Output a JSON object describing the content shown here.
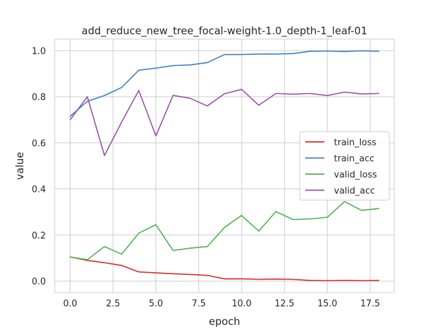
{
  "chart_data": {
    "type": "line",
    "title": "add_reduce_new_tree_focal-weight-1.0_depth-1_leaf-01",
    "xlabel": "epoch",
    "ylabel": "value",
    "xlim": [
      -0.9,
      18.9
    ],
    "ylim": [
      -0.05,
      1.05
    ],
    "x_ticks": [
      0.0,
      2.5,
      5.0,
      7.5,
      10.0,
      12.5,
      15.0,
      17.5
    ],
    "x_tick_labels": [
      "0.0",
      "2.5",
      "5.0",
      "7.5",
      "10.0",
      "12.5",
      "15.0",
      "17.5"
    ],
    "y_ticks": [
      0.0,
      0.2,
      0.4,
      0.6,
      0.8,
      1.0
    ],
    "y_tick_labels": [
      "0.0",
      "0.2",
      "0.4",
      "0.6",
      "0.8",
      "1.0"
    ],
    "grid": true,
    "legend_position": "center-right",
    "x": [
      0,
      1,
      2,
      3,
      4,
      5,
      6,
      7,
      8,
      9,
      10,
      11,
      12,
      13,
      14,
      15,
      16,
      17,
      18
    ],
    "series": [
      {
        "name": "train_loss",
        "color": "#d62728",
        "values": [
          0.105,
          0.09,
          0.08,
          0.068,
          0.04,
          0.036,
          0.032,
          0.029,
          0.025,
          0.01,
          0.01,
          0.008,
          0.009,
          0.008,
          0.003,
          0.002,
          0.003,
          0.002,
          0.003
        ]
      },
      {
        "name": "train_acc",
        "color": "#3a7dbf",
        "values": [
          0.715,
          0.78,
          0.805,
          0.84,
          0.915,
          0.924,
          0.935,
          0.938,
          0.948,
          0.983,
          0.983,
          0.985,
          0.985,
          0.987,
          0.997,
          0.998,
          0.996,
          0.999,
          0.997
        ]
      },
      {
        "name": "valid_loss",
        "color": "#4daf4a",
        "values": [
          0.105,
          0.093,
          0.15,
          0.117,
          0.208,
          0.245,
          0.133,
          0.143,
          0.15,
          0.233,
          0.285,
          0.217,
          0.302,
          0.267,
          0.27,
          0.277,
          0.345,
          0.307,
          0.315
        ]
      },
      {
        "name": "valid_acc",
        "color": "#984ea3",
        "values": [
          0.7,
          0.8,
          0.545,
          0.69,
          0.827,
          0.63,
          0.806,
          0.793,
          0.76,
          0.813,
          0.832,
          0.763,
          0.814,
          0.811,
          0.814,
          0.805,
          0.82,
          0.812,
          0.814
        ]
      }
    ]
  }
}
